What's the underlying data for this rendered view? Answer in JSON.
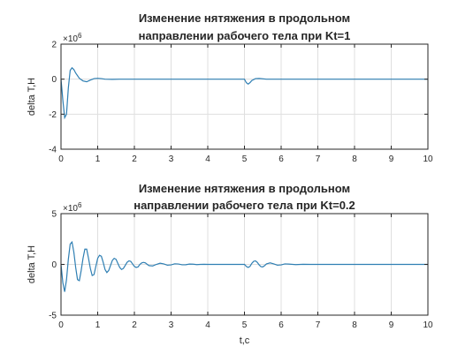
{
  "chart_data": [
    {
      "type": "line",
      "title": [
        "Изменение нятяжения в продольном",
        "направлении рабочего тела при Kt=1"
      ],
      "xlabel": "",
      "ylabel": "delta T,H",
      "y_exponent": "×10^6",
      "xlim": [
        0,
        10
      ],
      "ylim": [
        -4,
        2
      ],
      "xticks": [
        "0",
        "1",
        "2",
        "3",
        "4",
        "5",
        "6",
        "7",
        "8",
        "9",
        "10"
      ],
      "yticks": [
        "-4",
        "-2",
        "0",
        "2"
      ],
      "grid": true,
      "series": [
        {
          "color": "#2f7fb3",
          "x": [
            0,
            0.05,
            0.1,
            0.15,
            0.2,
            0.25,
            0.3,
            0.35,
            0.4,
            0.5,
            0.6,
            0.7,
            0.8,
            0.9,
            1.0,
            1.1,
            1.2,
            1.4,
            1.6,
            2.0,
            3.0,
            4.0,
            4.9,
            5.0,
            5.05,
            5.1,
            5.15,
            5.2,
            5.3,
            5.4,
            5.6,
            6.0,
            7.0,
            8.0,
            9.0,
            10.0
          ],
          "y": [
            0,
            -1.2,
            -2.2,
            -2.0,
            -0.5,
            0.5,
            0.65,
            0.55,
            0.35,
            0.05,
            -0.1,
            -0.15,
            -0.05,
            0.03,
            0.05,
            0.03,
            0.0,
            -0.01,
            0.0,
            0.0,
            0.0,
            0.0,
            0.0,
            0.0,
            -0.2,
            -0.28,
            -0.2,
            -0.08,
            0.03,
            0.04,
            0.0,
            0.0,
            0.0,
            0.0,
            0.0,
            0.0
          ]
        }
      ]
    },
    {
      "type": "line",
      "title": [
        "Изменение нятяжения в продольном",
        "направлении рабочего тела при Kt=0.2"
      ],
      "xlabel": "t,c",
      "ylabel": "delta T,H",
      "y_exponent": "×10^6",
      "xlim": [
        0,
        10
      ],
      "ylim": [
        -5,
        5
      ],
      "xticks": [
        "0",
        "1",
        "2",
        "3",
        "4",
        "5",
        "6",
        "7",
        "8",
        "9",
        "10"
      ],
      "yticks": [
        "-5",
        "0",
        "5"
      ],
      "grid": true,
      "series": [
        {
          "color": "#2f7fb3",
          "x": [
            0,
            0.05,
            0.1,
            0.15,
            0.2,
            0.25,
            0.3,
            0.35,
            0.4,
            0.45,
            0.5,
            0.55,
            0.6,
            0.65,
            0.7,
            0.75,
            0.8,
            0.85,
            0.9,
            0.95,
            1.0,
            1.05,
            1.1,
            1.15,
            1.2,
            1.25,
            1.3,
            1.35,
            1.4,
            1.45,
            1.5,
            1.55,
            1.6,
            1.65,
            1.7,
            1.75,
            1.8,
            1.85,
            1.9,
            1.95,
            2.0,
            2.05,
            2.1,
            2.15,
            2.2,
            2.25,
            2.3,
            2.35,
            2.4,
            2.5,
            2.6,
            2.7,
            2.8,
            2.9,
            3.0,
            3.1,
            3.2,
            3.3,
            3.4,
            3.5,
            3.6,
            3.7,
            3.8,
            3.9,
            4.0,
            4.2,
            4.4,
            4.6,
            4.8,
            5.0,
            5.05,
            5.1,
            5.15,
            5.2,
            5.25,
            5.3,
            5.35,
            5.4,
            5.45,
            5.5,
            5.55,
            5.6,
            5.7,
            5.8,
            5.9,
            6.0,
            6.1,
            6.2,
            6.4,
            6.6,
            6.8,
            7.0,
            7.5,
            8.0,
            9.0,
            10.0
          ],
          "y": [
            0,
            -1.8,
            -2.7,
            -1.5,
            0.5,
            2.0,
            2.2,
            1.2,
            -0.3,
            -1.5,
            -1.6,
            -0.6,
            0.6,
            1.5,
            1.5,
            0.6,
            -0.4,
            -1.1,
            -1.0,
            -0.2,
            0.6,
            0.9,
            0.8,
            0.2,
            -0.5,
            -0.8,
            -0.6,
            -0.1,
            0.4,
            0.6,
            0.5,
            0.1,
            -0.3,
            -0.5,
            -0.4,
            -0.1,
            0.2,
            0.35,
            0.3,
            0.05,
            -0.2,
            -0.3,
            -0.25,
            0.0,
            0.15,
            0.2,
            0.15,
            0.0,
            -0.12,
            -0.15,
            0.0,
            0.12,
            0.05,
            -0.08,
            -0.05,
            0.06,
            0.04,
            -0.04,
            -0.03,
            0.03,
            0.02,
            -0.02,
            0.0,
            0.01,
            0.0,
            0.0,
            0.0,
            0.0,
            0.0,
            0.0,
            -0.2,
            -0.3,
            -0.2,
            0.1,
            0.3,
            0.35,
            0.2,
            -0.05,
            -0.22,
            -0.25,
            -0.12,
            0.05,
            0.15,
            0.05,
            -0.08,
            -0.05,
            0.05,
            0.03,
            -0.02,
            0.01,
            0.0,
            0.0,
            0.0,
            0.0,
            0.0,
            0.0
          ]
        }
      ]
    }
  ]
}
